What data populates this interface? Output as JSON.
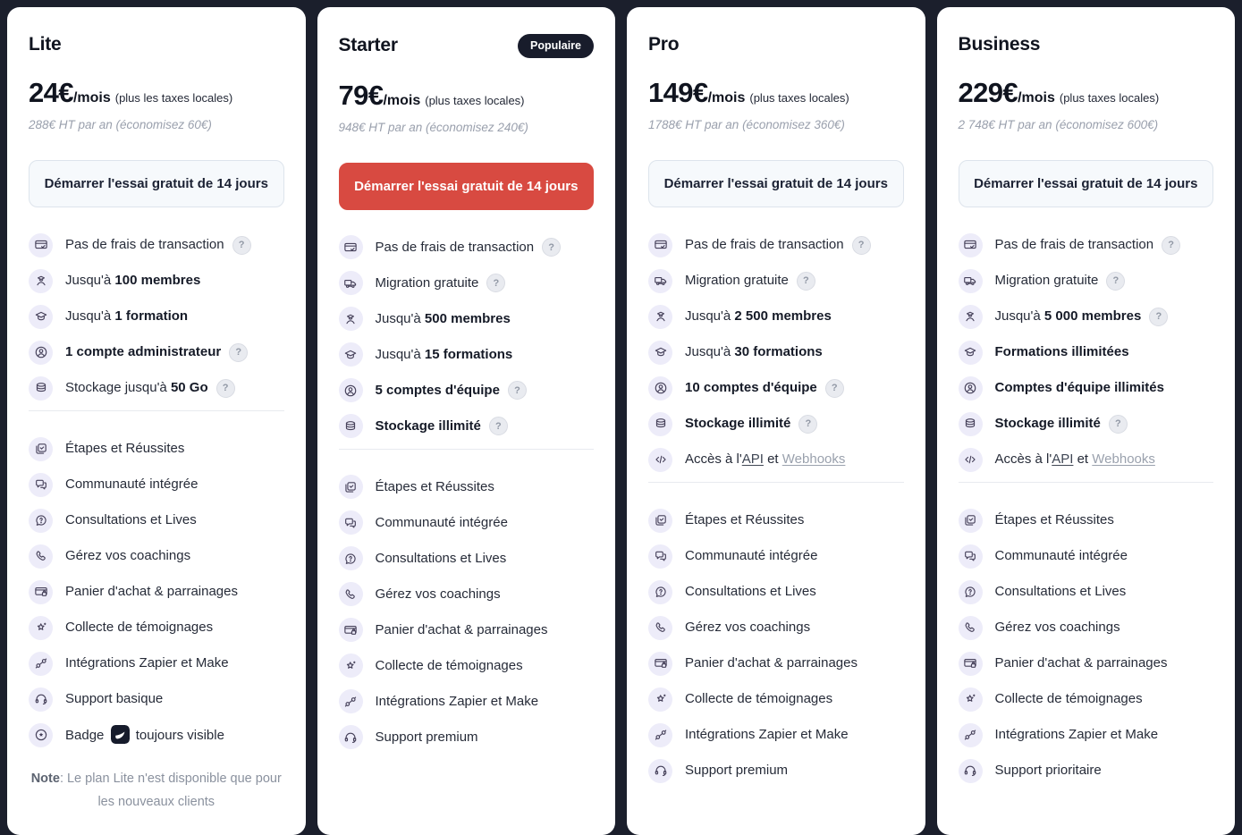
{
  "theme": {
    "page_background": "#1b1f2c",
    "card_background": "#ffffff",
    "accent_red": "#d84a41",
    "popular_badge_background": "#181c2b",
    "feature_icon_background": "#edecf9",
    "feature_icon_color": "#46415a",
    "muted_text": "#9aa0ad"
  },
  "plans": [
    {
      "name": "Lite",
      "price": "24€",
      "period": "/mois",
      "tax_note": "(plus les taxes locales)",
      "annual_note": "288€ HT par an (économisez 60€)",
      "badge": null,
      "cta_label": "Démarrer l'essai gratuit de 14 jours",
      "cta_style": "light",
      "features_top": [
        {
          "icon": "card-check",
          "segments": [
            {
              "text": "Pas de frais de transaction"
            }
          ],
          "help": true
        },
        {
          "icon": "graduate",
          "segments": [
            {
              "text": "Jusqu'à "
            },
            {
              "text": "100 membres",
              "bold": true
            }
          ]
        },
        {
          "icon": "graduation-cap",
          "segments": [
            {
              "text": "Jusqu'à "
            },
            {
              "text": "1 formation",
              "bold": true
            }
          ]
        },
        {
          "icon": "user-circle",
          "segments": [
            {
              "text": "1 compte administrateur",
              "bold": true
            }
          ],
          "help": true
        },
        {
          "icon": "database",
          "segments": [
            {
              "text": "Stockage jusqu'à "
            },
            {
              "text": "50 Go",
              "bold": true
            }
          ],
          "help": true
        }
      ],
      "features_bottom": [
        {
          "icon": "steps",
          "segments": [
            {
              "text": "Étapes et Réussites"
            }
          ]
        },
        {
          "icon": "community",
          "segments": [
            {
              "text": "Communauté intégrée"
            }
          ]
        },
        {
          "icon": "consult",
          "segments": [
            {
              "text": "Consultations et Lives"
            }
          ]
        },
        {
          "icon": "phone",
          "segments": [
            {
              "text": "Gérez vos coachings"
            }
          ]
        },
        {
          "icon": "cart-card",
          "segments": [
            {
              "text": "Panier d'achat & parrainages"
            }
          ]
        },
        {
          "icon": "star",
          "segments": [
            {
              "text": "Collecte de témoignages"
            }
          ]
        },
        {
          "icon": "plug",
          "segments": [
            {
              "text": "Intégrations Zapier et Make"
            }
          ]
        },
        {
          "icon": "headset",
          "segments": [
            {
              "text": "Support basique"
            }
          ]
        },
        {
          "icon": "award",
          "segments": [
            {
              "text": "Badge "
            },
            {
              "logo": true
            },
            {
              "text": " toujours visible"
            }
          ]
        }
      ],
      "note": {
        "label": "Note",
        "text": ": Le plan Lite n'est disponible que pour les nouveaux clients"
      }
    },
    {
      "name": "Starter",
      "price": "79€",
      "period": "/mois",
      "tax_note": "(plus taxes locales)",
      "annual_note": "948€ HT par an (économisez 240€)",
      "badge": "Populaire",
      "cta_label": "Démarrer l'essai gratuit de 14 jours",
      "cta_style": "red",
      "features_top": [
        {
          "icon": "card-check",
          "segments": [
            {
              "text": "Pas de frais de transaction"
            }
          ],
          "help": true
        },
        {
          "icon": "truck",
          "segments": [
            {
              "text": "Migration gratuite"
            }
          ],
          "help": true
        },
        {
          "icon": "graduate",
          "segments": [
            {
              "text": "Jusqu'à "
            },
            {
              "text": "500 membres",
              "bold": true
            }
          ]
        },
        {
          "icon": "graduation-cap",
          "segments": [
            {
              "text": "Jusqu'à "
            },
            {
              "text": "15 formations",
              "bold": true
            }
          ]
        },
        {
          "icon": "user-circle",
          "segments": [
            {
              "text": "5 comptes d'équipe",
              "bold": true
            }
          ],
          "help": true
        },
        {
          "icon": "database",
          "segments": [
            {
              "text": "Stockage illimité",
              "bold": true
            }
          ],
          "help": true
        }
      ],
      "features_bottom": [
        {
          "icon": "steps",
          "segments": [
            {
              "text": "Étapes et Réussites"
            }
          ]
        },
        {
          "icon": "community",
          "segments": [
            {
              "text": "Communauté intégrée"
            }
          ]
        },
        {
          "icon": "consult",
          "segments": [
            {
              "text": "Consultations et Lives"
            }
          ]
        },
        {
          "icon": "phone",
          "segments": [
            {
              "text": "Gérez vos coachings"
            }
          ]
        },
        {
          "icon": "cart-card",
          "segments": [
            {
              "text": "Panier d'achat & parrainages"
            }
          ]
        },
        {
          "icon": "star",
          "segments": [
            {
              "text": "Collecte de témoignages"
            }
          ]
        },
        {
          "icon": "plug",
          "segments": [
            {
              "text": "Intégrations Zapier et Make"
            }
          ]
        },
        {
          "icon": "headset",
          "segments": [
            {
              "text": "Support premium"
            }
          ]
        }
      ],
      "note": null
    },
    {
      "name": "Pro",
      "price": "149€",
      "period": "/mois",
      "tax_note": "(plus taxes locales)",
      "annual_note": "1788€ HT par an (économisez 360€)",
      "badge": null,
      "cta_label": "Démarrer l'essai gratuit de 14 jours",
      "cta_style": "light",
      "features_top": [
        {
          "icon": "card-check",
          "segments": [
            {
              "text": "Pas de frais de transaction"
            }
          ],
          "help": true
        },
        {
          "icon": "truck",
          "segments": [
            {
              "text": "Migration gratuite"
            }
          ],
          "help": true
        },
        {
          "icon": "graduate",
          "segments": [
            {
              "text": "Jusqu'à "
            },
            {
              "text": "2 500 membres",
              "bold": true
            }
          ]
        },
        {
          "icon": "graduation-cap",
          "segments": [
            {
              "text": "Jusqu'à "
            },
            {
              "text": "30 formations",
              "bold": true
            }
          ]
        },
        {
          "icon": "user-circle",
          "segments": [
            {
              "text": "10 comptes d'équipe",
              "bold": true
            }
          ],
          "help": true
        },
        {
          "icon": "database",
          "segments": [
            {
              "text": "Stockage illimité",
              "bold": true
            }
          ],
          "help": true
        },
        {
          "icon": "code",
          "segments": [
            {
              "text": "Accès à l'"
            },
            {
              "text": "API",
              "link": "dark"
            },
            {
              "text": " et "
            },
            {
              "text": "Webhooks",
              "link": "muted"
            }
          ]
        }
      ],
      "features_bottom": [
        {
          "icon": "steps",
          "segments": [
            {
              "text": "Étapes et Réussites"
            }
          ]
        },
        {
          "icon": "community",
          "segments": [
            {
              "text": "Communauté intégrée"
            }
          ]
        },
        {
          "icon": "consult",
          "segments": [
            {
              "text": "Consultations et Lives"
            }
          ]
        },
        {
          "icon": "phone",
          "segments": [
            {
              "text": "Gérez vos coachings"
            }
          ]
        },
        {
          "icon": "cart-card",
          "segments": [
            {
              "text": "Panier d'achat & parrainages"
            }
          ]
        },
        {
          "icon": "star",
          "segments": [
            {
              "text": "Collecte de témoignages"
            }
          ]
        },
        {
          "icon": "plug",
          "segments": [
            {
              "text": "Intégrations Zapier et Make"
            }
          ]
        },
        {
          "icon": "headset",
          "segments": [
            {
              "text": "Support premium"
            }
          ]
        }
      ],
      "note": null
    },
    {
      "name": "Business",
      "price": "229€",
      "period": "/mois",
      "tax_note": "(plus taxes locales)",
      "annual_note": "2 748€ HT par an (économisez 600€)",
      "badge": null,
      "cta_label": "Démarrer l'essai gratuit de 14 jours",
      "cta_style": "light",
      "features_top": [
        {
          "icon": "card-check",
          "segments": [
            {
              "text": "Pas de frais de transaction"
            }
          ],
          "help": true
        },
        {
          "icon": "truck",
          "segments": [
            {
              "text": "Migration gratuite"
            }
          ],
          "help": true
        },
        {
          "icon": "graduate",
          "segments": [
            {
              "text": "Jusqu'à "
            },
            {
              "text": "5 000 membres",
              "bold": true
            }
          ],
          "help": true
        },
        {
          "icon": "graduation-cap",
          "segments": [
            {
              "text": "Formations illimitées",
              "bold": true
            }
          ]
        },
        {
          "icon": "user-circle",
          "segments": [
            {
              "text": "Comptes d'équipe illimités",
              "bold": true
            }
          ]
        },
        {
          "icon": "database",
          "segments": [
            {
              "text": "Stockage illimité",
              "bold": true
            }
          ],
          "help": true
        },
        {
          "icon": "code",
          "segments": [
            {
              "text": "Accès à l'"
            },
            {
              "text": "API",
              "link": "dark"
            },
            {
              "text": " et "
            },
            {
              "text": "Webhooks",
              "link": "muted"
            }
          ]
        }
      ],
      "features_bottom": [
        {
          "icon": "steps",
          "segments": [
            {
              "text": "Étapes et Réussites"
            }
          ]
        },
        {
          "icon": "community",
          "segments": [
            {
              "text": "Communauté intégrée"
            }
          ]
        },
        {
          "icon": "consult",
          "segments": [
            {
              "text": "Consultations et Lives"
            }
          ]
        },
        {
          "icon": "phone",
          "segments": [
            {
              "text": "Gérez vos coachings"
            }
          ]
        },
        {
          "icon": "cart-card",
          "segments": [
            {
              "text": "Panier d'achat & parrainages"
            }
          ]
        },
        {
          "icon": "star",
          "segments": [
            {
              "text": "Collecte de témoignages"
            }
          ]
        },
        {
          "icon": "plug",
          "segments": [
            {
              "text": "Intégrations Zapier et Make"
            }
          ]
        },
        {
          "icon": "headset",
          "segments": [
            {
              "text": "Support prioritaire"
            }
          ]
        }
      ],
      "note": null
    }
  ]
}
